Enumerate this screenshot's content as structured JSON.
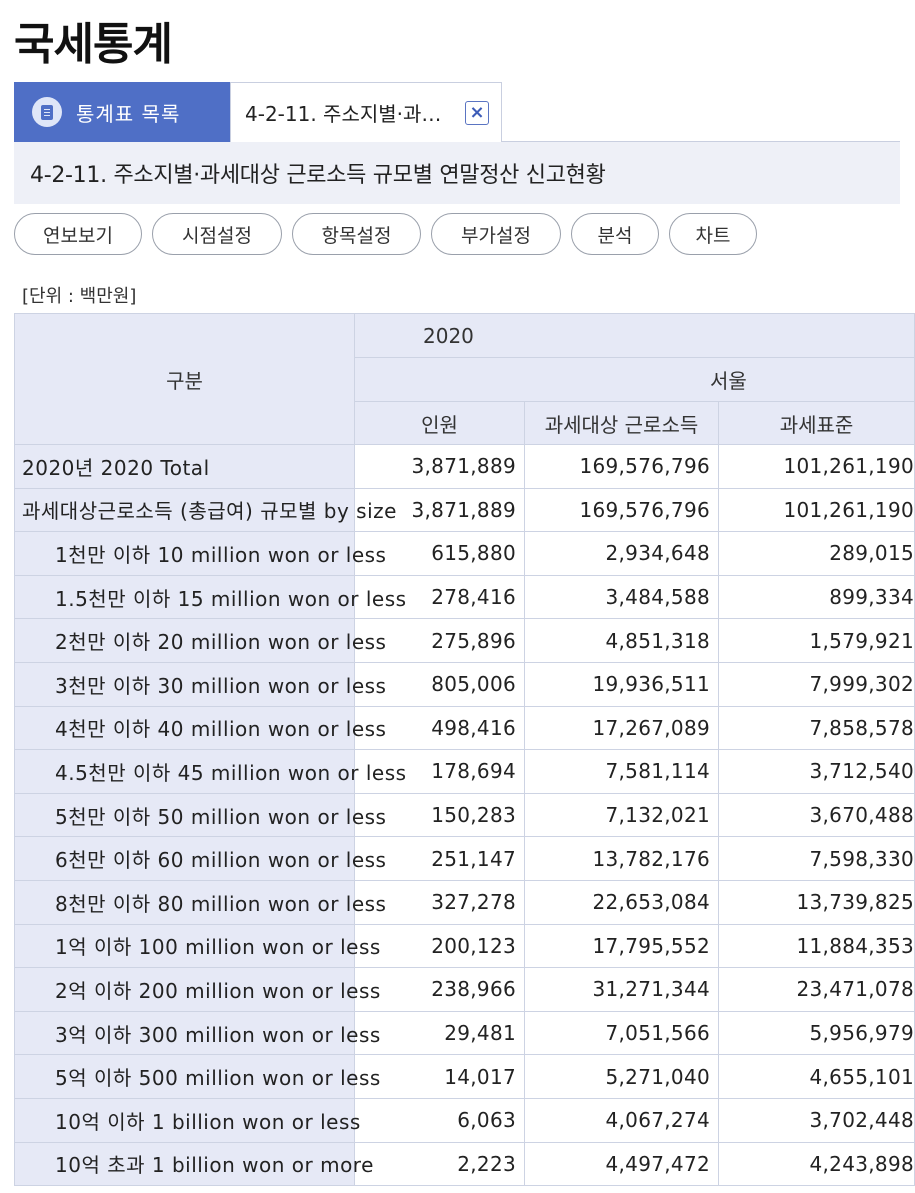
{
  "app": {
    "title": "국세통계"
  },
  "tabs": {
    "list_label": "통계표 목록",
    "list_icon": "document-list-icon",
    "active_label": "4-2-11. 주소지별·과…",
    "close_glyph": "×"
  },
  "table_title": "4-2-11. 주소지별·과세대상 근로소득 규모별 연말정산 신고현황",
  "toolbar": [
    "연보보기",
    "시점설정",
    "항목설정",
    "부가설정",
    "분석",
    "차트"
  ],
  "unit_label": "[단위 : 백만원]",
  "table": {
    "corner_header": "구분",
    "year": "2020",
    "region": "서울",
    "columns": [
      "인원",
      "과세대상 근로소득",
      "과세표준"
    ],
    "rows": [
      {
        "label": "2020년 2020 Total",
        "values": [
          "3,871,889",
          "169,576,796",
          "101,261,190"
        ]
      },
      {
        "label": "과세대상근로소득 (총급여) 규모별 by size",
        "values": [
          "3,871,889",
          "169,576,796",
          "101,261,190"
        ]
      },
      {
        "label": "1천만 이하 10 million won or less",
        "values": [
          "615,880",
          "2,934,648",
          "289,015"
        ]
      },
      {
        "label": "1.5천만 이하 15 million won or less",
        "values": [
          "278,416",
          "3,484,588",
          "899,334"
        ]
      },
      {
        "label": "2천만 이하 20 million won or less",
        "values": [
          "275,896",
          "4,851,318",
          "1,579,921"
        ]
      },
      {
        "label": "3천만 이하 30 million won or less",
        "values": [
          "805,006",
          "19,936,511",
          "7,999,302"
        ]
      },
      {
        "label": "4천만 이하 40 million won or less",
        "values": [
          "498,416",
          "17,267,089",
          "7,858,578"
        ]
      },
      {
        "label": "4.5천만 이하 45 million won or less",
        "values": [
          "178,694",
          "7,581,114",
          "3,712,540"
        ]
      },
      {
        "label": "5천만 이하 50 million won or less",
        "values": [
          "150,283",
          "7,132,021",
          "3,670,488"
        ]
      },
      {
        "label": "6천만 이하 60 million won or less",
        "values": [
          "251,147",
          "13,782,176",
          "7,598,330"
        ]
      },
      {
        "label": "8천만 이하 80 million won or less",
        "values": [
          "327,278",
          "22,653,084",
          "13,739,825"
        ]
      },
      {
        "label": "1억 이하 100 million won or less",
        "values": [
          "200,123",
          "17,795,552",
          "11,884,353"
        ]
      },
      {
        "label": "2억 이하 200 million won or less",
        "values": [
          "238,966",
          "31,271,344",
          "23,471,078"
        ]
      },
      {
        "label": "3억 이하 300 million won or less",
        "values": [
          "29,481",
          "7,051,566",
          "5,956,979"
        ]
      },
      {
        "label": "5억 이하 500 million won or less",
        "values": [
          "14,017",
          "5,271,040",
          "4,655,101"
        ]
      },
      {
        "label": "10억 이하 1 billion won or less",
        "values": [
          "6,063",
          "4,067,274",
          "3,702,448"
        ]
      },
      {
        "label": "10억 초과 1 billion won or more",
        "values": [
          "2,223",
          "4,497,472",
          "4,243,898"
        ]
      }
    ]
  }
}
